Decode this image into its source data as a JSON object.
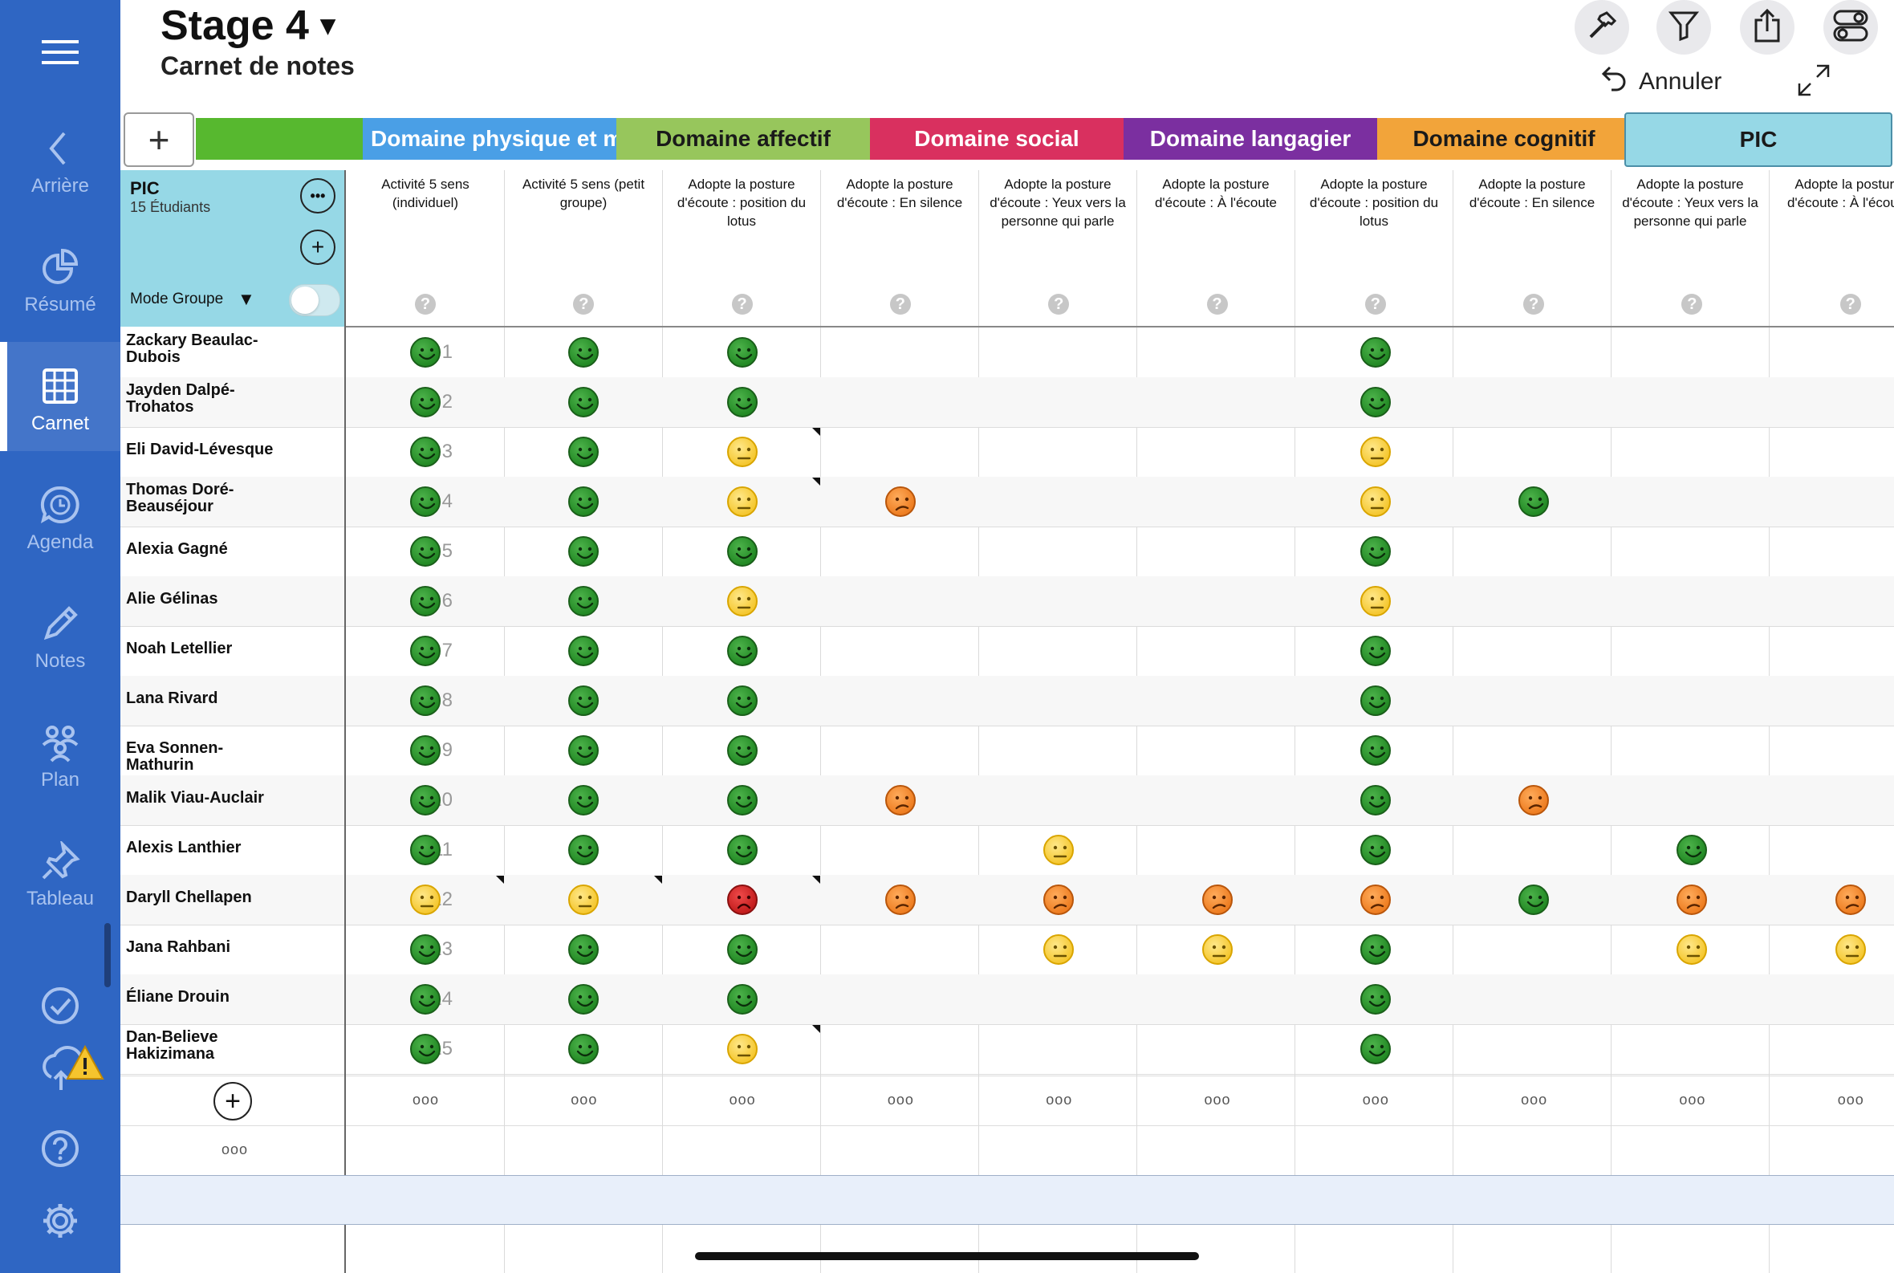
{
  "header": {
    "title": "Stage 4",
    "title_caret": "▾",
    "subtitle": "Carnet de notes",
    "undo_label": "Annuler"
  },
  "toolbar": {
    "icons": [
      "hammer-icon",
      "filter-icon",
      "share-icon",
      "toggles-icon"
    ]
  },
  "nav": {
    "menu_icon": "hamburger-icon",
    "items": [
      {
        "label": "Arrière",
        "icon": "chevron-left-icon"
      },
      {
        "label": "Résumé",
        "icon": "pie-chart-icon"
      },
      {
        "label": "Carnet",
        "icon": "grid-icon",
        "active": true
      },
      {
        "label": "Agenda",
        "icon": "clock-bubble-icon"
      },
      {
        "label": "Notes",
        "icon": "pencil-icon"
      },
      {
        "label": "Plan",
        "icon": "people-icon"
      },
      {
        "label": "Tableau",
        "icon": "pin-icon"
      }
    ],
    "bottom_icons": [
      "check-circle-icon",
      "cloud-warning-icon",
      "help-circle-icon",
      "gear-icon"
    ]
  },
  "domains": [
    {
      "label": "",
      "color": "#57b82f",
      "text_color": "#ffffff"
    },
    {
      "label": "Domaine physique et m",
      "color": "#4a9fe6",
      "text_color": "#ffffff"
    },
    {
      "label": "Domaine affectif",
      "color": "#97c65c",
      "text_color": "#1a1a1a"
    },
    {
      "label": "Domaine social",
      "color": "#d9305f",
      "text_color": "#ffffff"
    },
    {
      "label": "Domaine langagier",
      "color": "#7b2fa0",
      "text_color": "#ffffff"
    },
    {
      "label": "Domaine cognitif",
      "color": "#f2a43a",
      "text_color": "#1a1a1a"
    },
    {
      "label": "PIC",
      "color": "#96d8e6",
      "text_color": "#1a1a1a"
    }
  ],
  "group": {
    "name": "PIC",
    "count": "15 Étudiants",
    "mode_label": "Mode Groupe",
    "more_label": "•••",
    "add_label": "+"
  },
  "columns": [
    "Activité 5 sens (individuel)",
    "Activité 5 sens (petit groupe)",
    "Adopte la posture d'écoute : position du lotus",
    "Adopte la posture d'écoute : En silence",
    "Adopte la posture d'écoute : Yeux vers la personne qui parle",
    "Adopte la posture d'écoute : À l'écoute",
    "Adopte la posture d'écoute : position du lotus",
    "Adopte la posture d'écoute : En silence",
    "Adopte la posture d'écoute : Yeux vers la personne qui parle",
    "Adopte la posture d'écoute : À l'écoute"
  ],
  "help_symbol": "?",
  "students": [
    {
      "name": "Zackary  Beaulac-Dubois",
      "num": "1",
      "marks": [
        "g",
        "g",
        "g",
        "",
        "",
        "",
        "g",
        "",
        "",
        ""
      ],
      "notes": []
    },
    {
      "name": "Jayden  Dalpé-Trohatos",
      "num": "2",
      "marks": [
        "g",
        "g",
        "g",
        "",
        "",
        "",
        "g",
        "",
        "",
        ""
      ],
      "notes": []
    },
    {
      "name": "Eli  David-Lévesque",
      "num": "3",
      "marks": [
        "g",
        "g",
        "y",
        "",
        "",
        "",
        "y",
        "",
        "",
        ""
      ],
      "notes": [
        2
      ]
    },
    {
      "name": "Thomas Doré-Beauséjour",
      "num": "4",
      "marks": [
        "g",
        "g",
        "y",
        "o",
        "",
        "",
        "y",
        "g",
        "",
        ""
      ],
      "notes": [
        2
      ]
    },
    {
      "name": "Alexia Gagné",
      "num": "5",
      "marks": [
        "g",
        "g",
        "g",
        "",
        "",
        "",
        "g",
        "",
        "",
        ""
      ],
      "notes": []
    },
    {
      "name": "Alie Gélinas",
      "num": "6",
      "marks": [
        "g",
        "g",
        "y",
        "",
        "",
        "",
        "y",
        "",
        "",
        ""
      ],
      "notes": []
    },
    {
      "name": "Noah Letellier",
      "num": "7",
      "marks": [
        "g",
        "g",
        "g",
        "",
        "",
        "",
        "g",
        "",
        "",
        ""
      ],
      "notes": []
    },
    {
      "name": "Lana Rivard",
      "num": "8",
      "marks": [
        "g",
        "g",
        "g",
        "",
        "",
        "",
        "g",
        "",
        "",
        ""
      ],
      "notes": []
    },
    {
      "name": "Eva Sonnen-Mathurin",
      "num": "9",
      "marks": [
        "g",
        "g",
        "g",
        "",
        "",
        "",
        "g",
        "",
        "",
        ""
      ],
      "notes": []
    },
    {
      "name": "Malik Viau-Auclair",
      "num": "10",
      "marks": [
        "g",
        "g",
        "g",
        "o",
        "",
        "",
        "g",
        "o",
        "",
        ""
      ],
      "notes": []
    },
    {
      "name": "Alexis  Lanthier",
      "num": "11",
      "marks": [
        "g",
        "g",
        "g",
        "",
        "y",
        "",
        "g",
        "",
        "g",
        ""
      ],
      "notes": []
    },
    {
      "name": "Daryll  Chellapen",
      "num": "12",
      "marks": [
        "y",
        "y",
        "r",
        "o",
        "o",
        "o",
        "o",
        "g",
        "o",
        "o"
      ],
      "notes": [
        0,
        1,
        2
      ]
    },
    {
      "name": "Jana  Rahbani",
      "num": "13",
      "marks": [
        "g",
        "g",
        "g",
        "",
        "y",
        "y",
        "g",
        "",
        "y",
        "y"
      ],
      "notes": []
    },
    {
      "name": "Éliane Drouin",
      "num": "14",
      "marks": [
        "g",
        "g",
        "g",
        "",
        "",
        "",
        "g",
        "",
        "",
        ""
      ],
      "notes": []
    },
    {
      "name": "Dan-Believe Hakizimana",
      "num": "15",
      "marks": [
        "g",
        "g",
        "y",
        "",
        "",
        "",
        "g",
        "",
        "",
        ""
      ],
      "notes": [
        2
      ]
    }
  ],
  "footer": {
    "more_label": "ooo",
    "add_student": "+"
  }
}
